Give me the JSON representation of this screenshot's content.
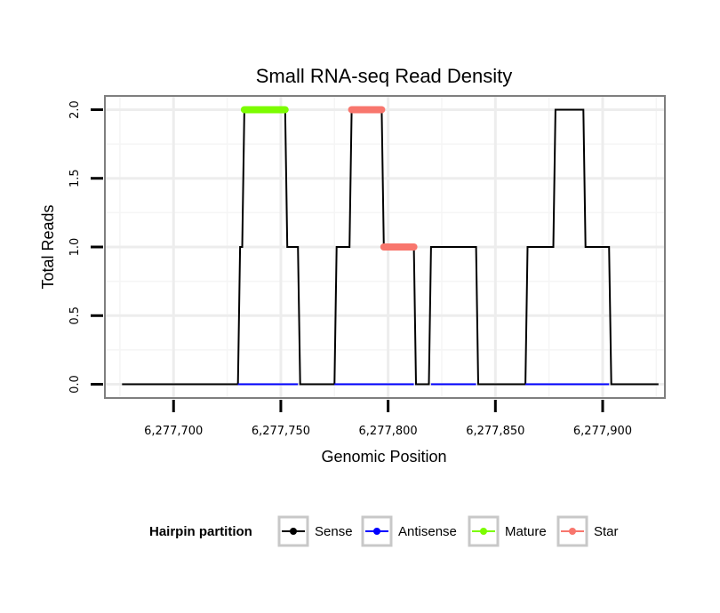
{
  "chart_data": {
    "type": "line",
    "title": "Small RNA-seq Read Density",
    "xlabel": "Genomic Position",
    "ylabel": "Total Reads",
    "xlim": [
      6277668,
      6277929
    ],
    "ylim": [
      -0.1,
      2.1
    ],
    "x_ticks": [
      6277700,
      6277750,
      6277800,
      6277850,
      6277900
    ],
    "x_tick_labels": [
      "6,277,700",
      "6,277,750",
      "6,277,800",
      "6,277,850",
      "6,277,900"
    ],
    "y_ticks": [
      0,
      0.5,
      1,
      1.5,
      2
    ],
    "y_tick_labels": [
      "0.0",
      "0.5",
      "1.0",
      "1.5",
      "2.0"
    ],
    "grid": true,
    "legend": {
      "title": "Hairpin partition",
      "position": "bottom",
      "entries": [
        {
          "label": "Sense",
          "color": "#000000"
        },
        {
          "label": "Antisense",
          "color": "#0000ff"
        },
        {
          "label": "Mature",
          "color": "#7cfc00"
        },
        {
          "label": "Star",
          "color": "#f8766d"
        }
      ]
    },
    "series": [
      {
        "name": "Sense",
        "color": "#000000",
        "x": [
          6277676,
          6277730,
          6277731,
          6277732,
          6277733,
          6277752,
          6277753,
          6277758,
          6277759,
          6277775,
          6277776,
          6277782,
          6277783,
          6277797,
          6277798,
          6277812,
          6277813,
          6277819,
          6277820,
          6277841,
          6277842,
          6277864,
          6277865,
          6277877,
          6277878,
          6277891,
          6277892,
          6277903,
          6277904,
          6277926
        ],
        "y": [
          0,
          0,
          1,
          1,
          2,
          2,
          1,
          1,
          0,
          0,
          1,
          1,
          2,
          2,
          1,
          1,
          0,
          0,
          1,
          1,
          0,
          0,
          1,
          1,
          2,
          2,
          1,
          1,
          0,
          0
        ]
      },
      {
        "name": "Antisense",
        "color": "#0000ff",
        "x": [
          6277730,
          6277758,
          6277775,
          6277812,
          6277820,
          6277841,
          6277864,
          6277903
        ],
        "y": [
          0,
          0,
          0,
          0,
          0,
          0,
          0,
          0
        ],
        "segments": [
          [
            6277730,
            6277758
          ],
          [
            6277775,
            6277812
          ],
          [
            6277820,
            6277841
          ],
          [
            6277864,
            6277903
          ]
        ]
      },
      {
        "name": "Mature",
        "color": "#7cfc00",
        "x": [
          6277733,
          6277752
        ],
        "y": [
          2,
          2
        ]
      },
      {
        "name": "Star",
        "color": "#f8766d",
        "segments": [
          {
            "x": [
              6277783,
              6277797
            ],
            "y": [
              2,
              2
            ]
          },
          {
            "x": [
              6277798,
              6277812
            ],
            "y": [
              1,
              1
            ]
          }
        ]
      }
    ]
  }
}
